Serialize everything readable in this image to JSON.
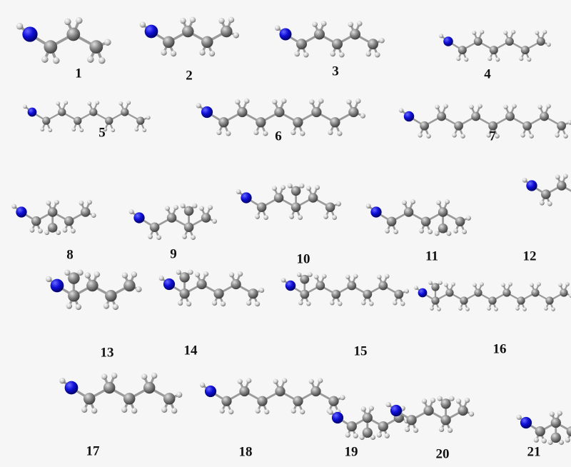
{
  "labels": [
    "1",
    "2",
    "3",
    "4",
    "5",
    "6",
    "7",
    "8",
    "9",
    "10",
    "11",
    "12",
    "13",
    "14",
    "15",
    "16",
    "17",
    "18",
    "19",
    "20",
    "21"
  ]
}
